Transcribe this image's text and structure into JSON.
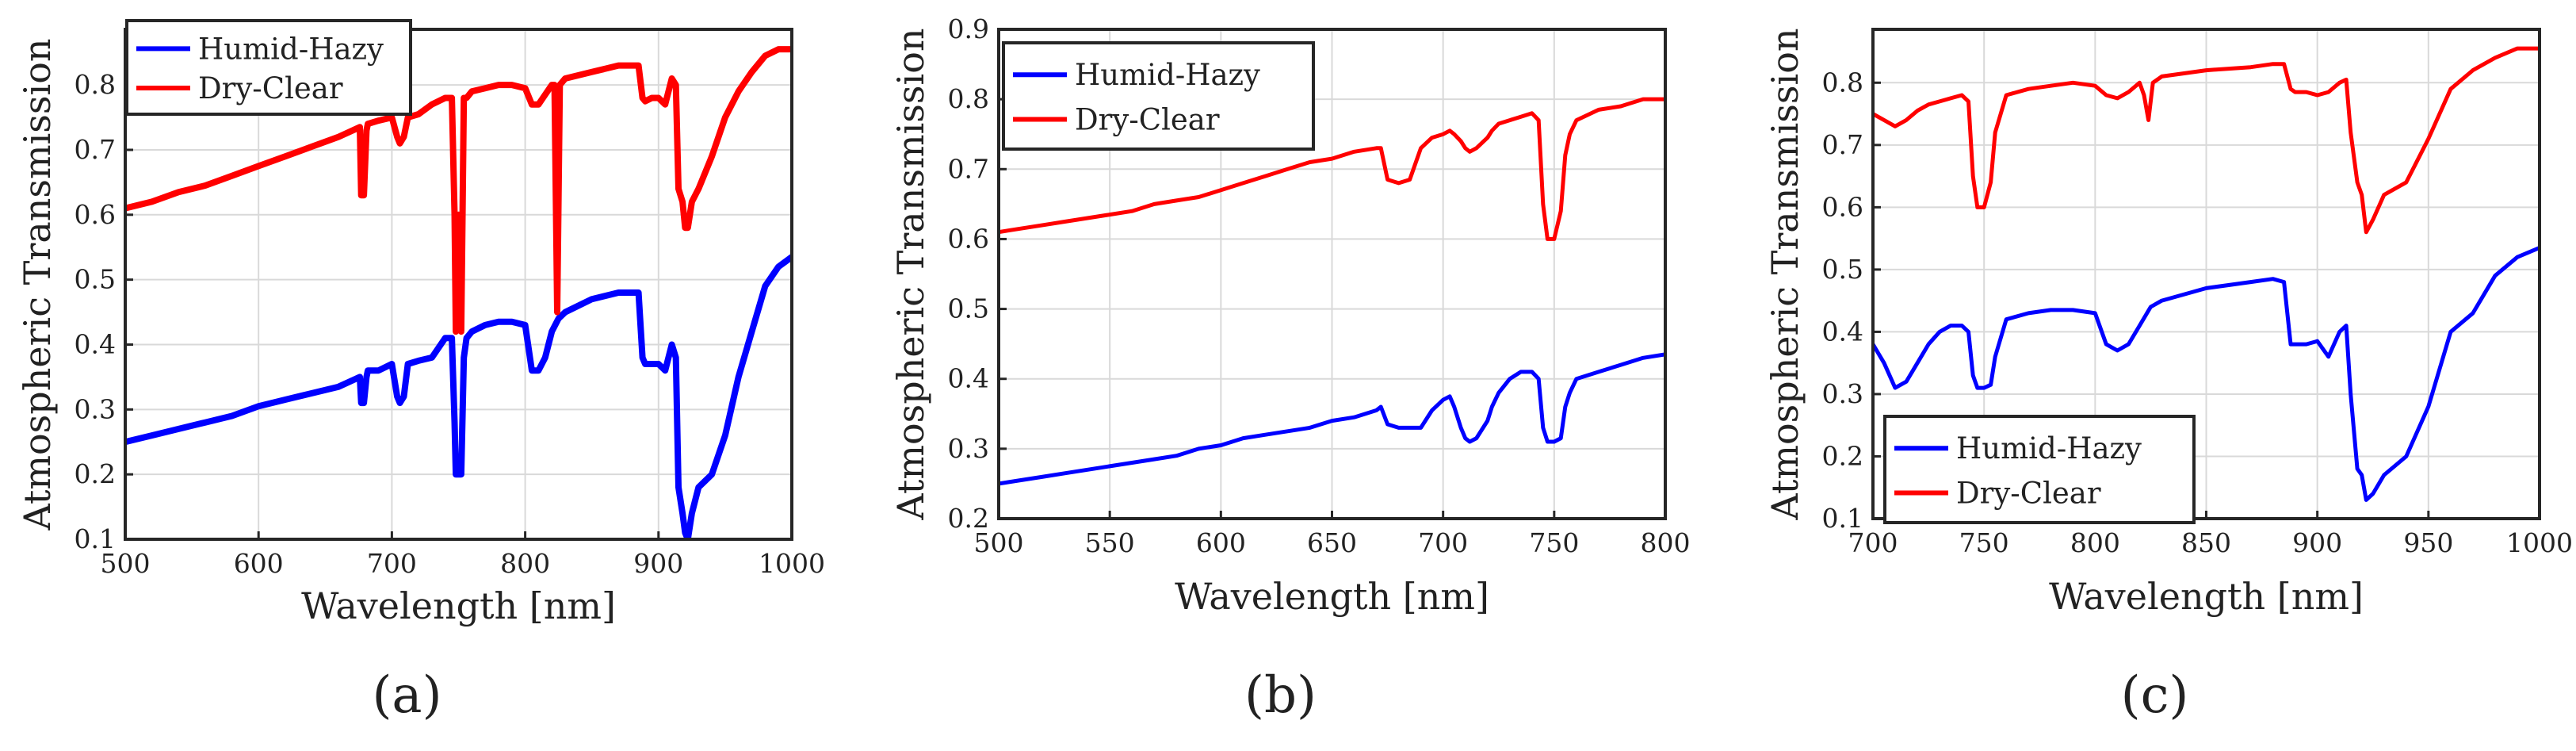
{
  "colors": {
    "humid": "#0000ff",
    "dry": "#ff0000",
    "axes": "#262626",
    "grid": "#d9d9d9"
  },
  "chart_data": [
    {
      "type": "line",
      "panel_label": "(a)",
      "xlabel": "Wavelength [nm]",
      "ylabel": "Atmospheric Transmission",
      "xlim": [
        500,
        1000
      ],
      "ylim": [
        0.1,
        0.8857
      ],
      "xticks": [
        500,
        600,
        700,
        800,
        900,
        1000
      ],
      "xtick_labels": [
        "500",
        "600",
        "700",
        "800",
        "900",
        "1000"
      ],
      "yticks": [
        0.1,
        0.2,
        0.3,
        0.4,
        0.5,
        0.6,
        0.7,
        0.8
      ],
      "ytick_labels": [
        "0.1",
        "0.2",
        "0.3",
        "0.4",
        "0.5",
        "0.6",
        "0.7",
        "0.8"
      ],
      "grid": true,
      "legend_position": "top-left",
      "series": [
        {
          "name": "Humid-Hazy",
          "color_key": "humid",
          "x": [
            500,
            520,
            540,
            560,
            580,
            600,
            620,
            640,
            660,
            676,
            677,
            679,
            681,
            682,
            690,
            700,
            704,
            706,
            709,
            712,
            720,
            730,
            740,
            745,
            747,
            748,
            750,
            752,
            754,
            756,
            760,
            770,
            780,
            790,
            800,
            805,
            810,
            815,
            820,
            825,
            830,
            850,
            870,
            880,
            885,
            888,
            890,
            895,
            900,
            905,
            910,
            913,
            915,
            918,
            920,
            922,
            925,
            930,
            940,
            950,
            960,
            970,
            980,
            990,
            1000
          ],
          "y": [
            0.25,
            0.26,
            0.27,
            0.28,
            0.29,
            0.305,
            0.315,
            0.325,
            0.335,
            0.35,
            0.31,
            0.31,
            0.35,
            0.36,
            0.36,
            0.37,
            0.32,
            0.31,
            0.32,
            0.37,
            0.375,
            0.38,
            0.41,
            0.41,
            0.28,
            0.2,
            0.2,
            0.2,
            0.38,
            0.41,
            0.42,
            0.43,
            0.435,
            0.435,
            0.43,
            0.36,
            0.36,
            0.38,
            0.42,
            0.44,
            0.45,
            0.47,
            0.48,
            0.48,
            0.48,
            0.38,
            0.37,
            0.37,
            0.37,
            0.36,
            0.4,
            0.38,
            0.18,
            0.14,
            0.11,
            0.1,
            0.14,
            0.18,
            0.2,
            0.26,
            0.35,
            0.42,
            0.49,
            0.52,
            0.535
          ]
        },
        {
          "name": "Dry-Clear",
          "color_key": "dry",
          "x": [
            500,
            520,
            540,
            560,
            580,
            600,
            620,
            640,
            660,
            676,
            677,
            679,
            681,
            682,
            690,
            700,
            704,
            706,
            709,
            712,
            720,
            730,
            740,
            745,
            747,
            748,
            750,
            752,
            754,
            756,
            760,
            770,
            780,
            790,
            800,
            805,
            810,
            815,
            820,
            822,
            824,
            826,
            830,
            850,
            870,
            880,
            885,
            888,
            890,
            895,
            900,
            905,
            910,
            913,
            915,
            918,
            920,
            922,
            925,
            930,
            940,
            950,
            960,
            970,
            980,
            990,
            1000
          ],
          "y": [
            0.61,
            0.62,
            0.635,
            0.645,
            0.66,
            0.675,
            0.69,
            0.705,
            0.72,
            0.735,
            0.63,
            0.63,
            0.73,
            0.74,
            0.745,
            0.75,
            0.72,
            0.71,
            0.72,
            0.75,
            0.755,
            0.77,
            0.78,
            0.78,
            0.6,
            0.42,
            0.6,
            0.42,
            0.78,
            0.78,
            0.79,
            0.795,
            0.8,
            0.8,
            0.795,
            0.77,
            0.77,
            0.785,
            0.8,
            0.8,
            0.45,
            0.8,
            0.81,
            0.82,
            0.83,
            0.83,
            0.83,
            0.78,
            0.775,
            0.78,
            0.78,
            0.77,
            0.81,
            0.8,
            0.64,
            0.62,
            0.58,
            0.58,
            0.62,
            0.64,
            0.69,
            0.75,
            0.79,
            0.82,
            0.845,
            0.855,
            0.855
          ]
        }
      ]
    },
    {
      "type": "line",
      "panel_label": "(b)",
      "xlabel": "Wavelength [nm]",
      "ylabel": "Atmospheric Transmission",
      "xlim": [
        500,
        800
      ],
      "ylim": [
        0.2,
        0.9
      ],
      "xticks": [
        500,
        550,
        600,
        650,
        700,
        750,
        800
      ],
      "xtick_labels": [
        "500",
        "550",
        "600",
        "650",
        "700",
        "750",
        "800"
      ],
      "yticks": [
        0.2,
        0.3,
        0.4,
        0.5,
        0.6,
        0.7,
        0.8,
        0.9
      ],
      "ytick_labels": [
        "0.2",
        "0.3",
        "0.4",
        "0.5",
        "0.6",
        "0.7",
        "0.8",
        "0.9"
      ],
      "grid": true,
      "legend_position": "top-left",
      "series": [
        {
          "name": "Humid-Hazy",
          "color_key": "humid",
          "x": [
            500,
            510,
            520,
            530,
            540,
            550,
            560,
            570,
            580,
            590,
            600,
            610,
            620,
            630,
            640,
            650,
            660,
            670,
            672,
            675,
            680,
            685,
            690,
            695,
            700,
            703,
            705,
            708,
            710,
            712,
            715,
            720,
            722,
            725,
            730,
            735,
            740,
            743,
            745,
            747,
            750,
            753,
            755,
            757,
            760,
            770,
            780,
            790,
            800
          ],
          "y": [
            0.25,
            0.255,
            0.26,
            0.265,
            0.27,
            0.275,
            0.28,
            0.285,
            0.29,
            0.3,
            0.305,
            0.315,
            0.32,
            0.325,
            0.33,
            0.34,
            0.345,
            0.355,
            0.36,
            0.335,
            0.33,
            0.33,
            0.33,
            0.355,
            0.37,
            0.375,
            0.36,
            0.33,
            0.315,
            0.31,
            0.315,
            0.34,
            0.36,
            0.38,
            0.4,
            0.41,
            0.41,
            0.4,
            0.33,
            0.31,
            0.31,
            0.315,
            0.36,
            0.38,
            0.4,
            0.41,
            0.42,
            0.43,
            0.435
          ]
        },
        {
          "name": "Dry-Clear",
          "color_key": "dry",
          "x": [
            500,
            510,
            520,
            530,
            540,
            550,
            560,
            570,
            580,
            590,
            600,
            610,
            620,
            630,
            640,
            650,
            660,
            670,
            672,
            675,
            680,
            685,
            690,
            695,
            700,
            703,
            705,
            708,
            710,
            712,
            715,
            720,
            722,
            725,
            730,
            735,
            740,
            743,
            745,
            747,
            750,
            753,
            755,
            757,
            760,
            770,
            780,
            790,
            800
          ],
          "y": [
            0.61,
            0.615,
            0.62,
            0.625,
            0.63,
            0.635,
            0.64,
            0.65,
            0.655,
            0.66,
            0.67,
            0.68,
            0.69,
            0.7,
            0.71,
            0.715,
            0.725,
            0.73,
            0.73,
            0.685,
            0.68,
            0.685,
            0.73,
            0.745,
            0.75,
            0.755,
            0.75,
            0.74,
            0.73,
            0.725,
            0.73,
            0.745,
            0.755,
            0.765,
            0.77,
            0.775,
            0.78,
            0.77,
            0.65,
            0.6,
            0.6,
            0.64,
            0.72,
            0.75,
            0.77,
            0.785,
            0.79,
            0.8,
            0.8
          ]
        }
      ]
    },
    {
      "type": "line",
      "panel_label": "(c)",
      "xlabel": "Wavelength [nm]",
      "ylabel": "Atmospheric Transmission",
      "xlim": [
        700,
        1000
      ],
      "ylim": [
        0.1,
        0.8857
      ],
      "xticks": [
        700,
        750,
        800,
        850,
        900,
        950,
        1000
      ],
      "xtick_labels": [
        "700",
        "750",
        "800",
        "850",
        "900",
        "950",
        "1000"
      ],
      "yticks": [
        0.1,
        0.2,
        0.3,
        0.4,
        0.5,
        0.6,
        0.7,
        0.8
      ],
      "ytick_labels": [
        "0.1",
        "0.2",
        "0.3",
        "0.4",
        "0.5",
        "0.6",
        "0.7",
        "0.8"
      ],
      "grid": true,
      "legend_position": "bottom-left",
      "series": [
        {
          "name": "Humid-Hazy",
          "color_key": "humid",
          "x": [
            700,
            705,
            710,
            715,
            720,
            725,
            730,
            735,
            740,
            743,
            745,
            747,
            750,
            753,
            755,
            760,
            770,
            780,
            790,
            800,
            805,
            810,
            815,
            820,
            825,
            830,
            850,
            870,
            880,
            885,
            888,
            890,
            895,
            900,
            905,
            910,
            913,
            915,
            918,
            920,
            922,
            925,
            930,
            940,
            950,
            960,
            970,
            980,
            990,
            1000
          ],
          "y": [
            0.38,
            0.35,
            0.31,
            0.32,
            0.35,
            0.38,
            0.4,
            0.41,
            0.41,
            0.4,
            0.33,
            0.31,
            0.31,
            0.315,
            0.36,
            0.42,
            0.43,
            0.435,
            0.435,
            0.43,
            0.38,
            0.37,
            0.38,
            0.41,
            0.44,
            0.45,
            0.47,
            0.48,
            0.485,
            0.48,
            0.38,
            0.38,
            0.38,
            0.385,
            0.36,
            0.4,
            0.41,
            0.3,
            0.18,
            0.17,
            0.13,
            0.14,
            0.17,
            0.2,
            0.28,
            0.4,
            0.43,
            0.49,
            0.52,
            0.535
          ]
        },
        {
          "name": "Dry-Clear",
          "color_key": "dry",
          "x": [
            700,
            705,
            710,
            715,
            720,
            725,
            730,
            735,
            740,
            743,
            745,
            747,
            750,
            753,
            755,
            760,
            770,
            780,
            790,
            800,
            805,
            810,
            815,
            820,
            822,
            824,
            826,
            830,
            850,
            870,
            880,
            885,
            888,
            890,
            895,
            900,
            905,
            910,
            913,
            915,
            918,
            920,
            922,
            925,
            930,
            940,
            950,
            960,
            970,
            980,
            990,
            1000
          ],
          "y": [
            0.75,
            0.74,
            0.73,
            0.74,
            0.755,
            0.765,
            0.77,
            0.775,
            0.78,
            0.77,
            0.65,
            0.6,
            0.6,
            0.64,
            0.72,
            0.78,
            0.79,
            0.795,
            0.8,
            0.795,
            0.78,
            0.775,
            0.785,
            0.8,
            0.78,
            0.74,
            0.8,
            0.81,
            0.82,
            0.825,
            0.83,
            0.83,
            0.79,
            0.785,
            0.785,
            0.78,
            0.785,
            0.8,
            0.805,
            0.72,
            0.64,
            0.62,
            0.56,
            0.58,
            0.62,
            0.64,
            0.71,
            0.79,
            0.82,
            0.84,
            0.855,
            0.855
          ]
        }
      ]
    }
  ]
}
